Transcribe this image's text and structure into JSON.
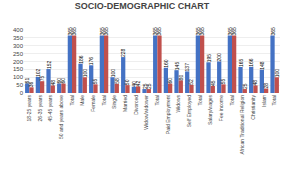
{
  "chart_data": {
    "type": "bar",
    "title": "SOCIO-DEMOGRAPHIC CHART",
    "categories": [
      "18-25 years",
      "26-35 years",
      "45-45 years",
      "50 and years above",
      "Total",
      "Male",
      "Female",
      "Total",
      "Single",
      "Married",
      "Divorced",
      "Widow/widower",
      "Total",
      "Paid Employment",
      "Widows",
      "Self Employed",
      "Total",
      "Salary/wages",
      "Fee income",
      "Total",
      "African Traditional Religion",
      "Christianity",
      "Islam",
      "Total"
    ],
    "series": [
      {
        "color": "#4472c4",
        "values": [
          61,
          102,
          152,
          60,
          365,
          186,
          176,
          365,
          100,
          228,
          40,
          25,
          365,
          160,
          145,
          137,
          365,
          195,
          200,
          365,
          165,
          166,
          148,
          365
        ]
      },
      {
        "color": "#c0504d",
        "values": [
          36,
          75,
          48,
          60,
          365,
          100,
          55,
          365,
          58,
          50,
          42,
          25,
          365,
          60,
          80,
          52,
          365,
          45,
          55,
          365,
          25,
          48,
          28,
          100
        ]
      }
    ],
    "ylim": [
      0,
      400
    ],
    "yticks": [
      0,
      50,
      100,
      150,
      200,
      250,
      300,
      350,
      400
    ],
    "grid": true,
    "data_labels": true
  }
}
